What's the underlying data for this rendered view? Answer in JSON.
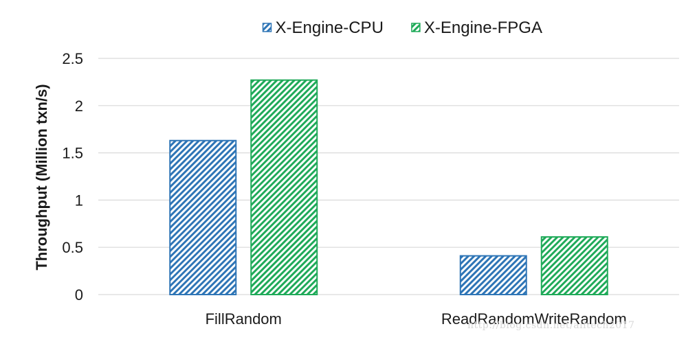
{
  "chart_data": {
    "type": "bar",
    "categories": [
      "FillRandom",
      "ReadRandomWriteRandom"
    ],
    "series": [
      {
        "name": "X-Engine-CPU",
        "values": [
          1.63,
          0.41
        ],
        "color": "#2e75b6",
        "pattern": "diagonal-hatch"
      },
      {
        "name": "X-Engine-FPGA",
        "values": [
          2.27,
          0.61
        ],
        "color": "#1faa59",
        "pattern": "diagonal-hatch"
      }
    ],
    "title": "",
    "xlabel": "",
    "ylabel": "Throughput  (Million txn/s)",
    "ylim": [
      0,
      2.5
    ],
    "yticks": [
      0,
      0.5,
      1,
      1.5,
      2,
      2.5
    ],
    "ytick_labels": [
      "0",
      "0.5",
      "1",
      "1.5",
      "2",
      "2.5"
    ],
    "grid": true,
    "legend_position": "top-center"
  },
  "watermark": "http://blog.csdn.net/alitech2017"
}
